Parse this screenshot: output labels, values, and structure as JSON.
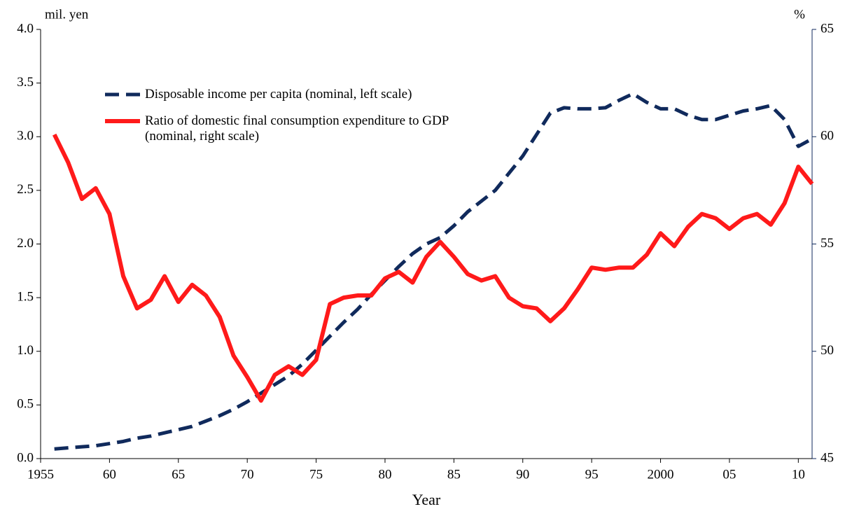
{
  "chart_data": {
    "type": "line",
    "x_label": "Year",
    "y_unit": "mil. yen",
    "y2_unit": "%",
    "x": [
      1956,
      1957,
      1958,
      1959,
      1960,
      1961,
      1962,
      1963,
      1964,
      1965,
      1966,
      1967,
      1968,
      1969,
      1970,
      1971,
      1972,
      1973,
      1974,
      1975,
      1976,
      1977,
      1978,
      1979,
      1980,
      1981,
      1982,
      1983,
      1984,
      1985,
      1986,
      1987,
      1988,
      1989,
      1990,
      1991,
      1992,
      1993,
      1994,
      1995,
      1996,
      1997,
      1998,
      1999,
      2000,
      2001,
      2002,
      2003,
      2004,
      2005,
      2006,
      2007,
      2008,
      2009,
      2010,
      2011
    ],
    "series": [
      {
        "name": "Disposable income per capita (nominal, left scale)",
        "color": "#102a5c",
        "dash": true,
        "axis": "y",
        "values": [
          0.09,
          0.1,
          0.11,
          0.12,
          0.14,
          0.16,
          0.19,
          0.21,
          0.24,
          0.27,
          0.3,
          0.35,
          0.4,
          0.46,
          0.53,
          0.61,
          0.69,
          0.77,
          0.88,
          1.01,
          1.14,
          1.27,
          1.39,
          1.53,
          1.66,
          1.79,
          1.91,
          2.0,
          2.06,
          2.17,
          2.3,
          2.4,
          2.5,
          2.66,
          2.82,
          3.02,
          3.22,
          3.27,
          3.26,
          3.26,
          3.27,
          3.34,
          3.4,
          3.32,
          3.26,
          3.26,
          3.2,
          3.16,
          3.16,
          3.2,
          3.24,
          3.26,
          3.29,
          3.16,
          2.91,
          2.98
        ]
      },
      {
        "name": "Ratio of domestic final consumption expenditure to GDP (nominal, right scale)",
        "color": "#ff1a1a",
        "dash": false,
        "axis": "y2",
        "values": [
          60.1,
          58.8,
          57.1,
          57.6,
          56.4,
          53.5,
          52.0,
          52.4,
          53.5,
          52.3,
          53.1,
          52.6,
          51.6,
          49.8,
          48.8,
          47.7,
          48.9,
          49.3,
          48.9,
          49.6,
          52.2,
          52.5,
          52.6,
          52.6,
          53.4,
          53.7,
          53.2,
          54.4,
          55.1,
          54.4,
          53.6,
          53.3,
          53.5,
          52.5,
          52.1,
          52.0,
          51.4,
          52.0,
          52.9,
          53.9,
          53.8,
          53.9,
          53.9,
          54.5,
          55.5,
          54.9,
          55.8,
          56.4,
          56.2,
          55.7,
          56.2,
          56.4,
          55.9,
          56.9,
          58.6,
          57.8
        ]
      }
    ],
    "xlim": [
      1955,
      2011
    ],
    "xticks": [
      1955,
      {
        "value": 1960,
        "label": "60"
      },
      {
        "value": 1965,
        "label": "65"
      },
      {
        "value": 1970,
        "label": "70"
      },
      {
        "value": 1975,
        "label": "75"
      },
      {
        "value": 1980,
        "label": "80"
      },
      {
        "value": 1985,
        "label": "85"
      },
      {
        "value": 1990,
        "label": "90"
      },
      {
        "value": 1995,
        "label": "95"
      },
      2000,
      {
        "value": 2005,
        "label": "05"
      },
      {
        "value": 2010,
        "label": "10"
      }
    ],
    "ylim": [
      0,
      4
    ],
    "yticks": [
      {
        "value": 0,
        "label": "0.0"
      },
      {
        "value": 0.5,
        "label": "0.5"
      },
      {
        "value": 1,
        "label": "1.0"
      },
      {
        "value": 1.5,
        "label": "1.5"
      },
      {
        "value": 2,
        "label": "2.0"
      },
      {
        "value": 2.5,
        "label": "2.5"
      },
      {
        "value": 3,
        "label": "3.0"
      },
      {
        "value": 3.5,
        "label": "3.5"
      },
      {
        "value": 4,
        "label": "4.0"
      }
    ],
    "y2lim": [
      45,
      65
    ],
    "y2ticks": [
      45,
      50,
      55,
      60,
      65
    ],
    "grid": false
  }
}
